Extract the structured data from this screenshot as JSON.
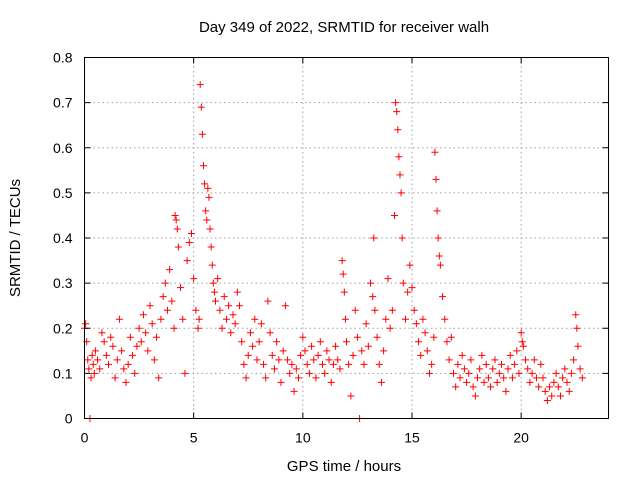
{
  "chart_data": {
    "type": "scatter",
    "title": "Day 349 of 2022, SRMTID for receiver walh",
    "xlabel": "GPS time / hours",
    "ylabel": "SRMTID / TECUs",
    "xlim": [
      0,
      24
    ],
    "ylim": [
      0,
      0.8
    ],
    "xticks": [
      0,
      5,
      10,
      15,
      20
    ],
    "xtick_labels": [
      "0",
      "5",
      "10",
      "15",
      "20"
    ],
    "yticks": [
      0,
      0.1,
      0.2,
      0.3,
      0.4,
      0.5,
      0.6,
      0.7,
      0.8
    ],
    "ytick_labels": [
      "0",
      "0.1",
      "0.2",
      "0.3",
      "0.4",
      "0.5",
      "0.6",
      "0.7",
      "0.8"
    ],
    "grid": true,
    "marker": "plus",
    "marker_color": "#ff0000",
    "series": [
      {
        "name": "SRMTID",
        "points": [
          [
            0.0,
            0.2
          ],
          [
            0.05,
            0.21
          ],
          [
            0.1,
            0.17
          ],
          [
            0.15,
            0.13
          ],
          [
            0.2,
            0.11
          ],
          [
            0.25,
            0.0
          ],
          [
            0.3,
            0.09
          ],
          [
            0.35,
            0.14
          ],
          [
            0.4,
            0.12
          ],
          [
            0.45,
            0.1
          ],
          [
            0.5,
            0.15
          ],
          [
            0.6,
            0.13
          ],
          [
            0.7,
            0.11
          ],
          [
            0.8,
            0.19
          ],
          [
            0.9,
            0.17
          ],
          [
            1.0,
            0.14
          ],
          [
            1.1,
            0.12
          ],
          [
            1.2,
            0.18
          ],
          [
            1.3,
            0.16
          ],
          [
            1.4,
            0.09
          ],
          [
            1.5,
            0.13
          ],
          [
            1.6,
            0.22
          ],
          [
            1.7,
            0.15
          ],
          [
            1.8,
            0.11
          ],
          [
            1.9,
            0.08
          ],
          [
            2.0,
            0.12
          ],
          [
            2.1,
            0.18
          ],
          [
            2.2,
            0.14
          ],
          [
            2.3,
            0.1
          ],
          [
            2.4,
            0.16
          ],
          [
            2.5,
            0.2
          ],
          [
            2.6,
            0.17
          ],
          [
            2.7,
            0.23
          ],
          [
            2.8,
            0.19
          ],
          [
            2.9,
            0.15
          ],
          [
            3.0,
            0.25
          ],
          [
            3.1,
            0.21
          ],
          [
            3.2,
            0.13
          ],
          [
            3.3,
            0.18
          ],
          [
            3.4,
            0.09
          ],
          [
            3.5,
            0.22
          ],
          [
            3.6,
            0.27
          ],
          [
            3.7,
            0.3
          ],
          [
            3.8,
            0.24
          ],
          [
            3.9,
            0.33
          ],
          [
            4.0,
            0.26
          ],
          [
            4.1,
            0.2
          ],
          [
            4.15,
            0.45
          ],
          [
            4.2,
            0.44
          ],
          [
            4.25,
            0.42
          ],
          [
            4.3,
            0.38
          ],
          [
            4.4,
            0.29
          ],
          [
            4.5,
            0.22
          ],
          [
            4.6,
            0.1
          ],
          [
            4.7,
            0.35
          ],
          [
            4.8,
            0.39
          ],
          [
            4.9,
            0.41
          ],
          [
            5.0,
            0.31
          ],
          [
            5.1,
            0.24
          ],
          [
            5.2,
            0.2
          ],
          [
            5.25,
            0.22
          ],
          [
            5.3,
            0.74
          ],
          [
            5.35,
            0.69
          ],
          [
            5.4,
            0.63
          ],
          [
            5.45,
            0.56
          ],
          [
            5.5,
            0.52
          ],
          [
            5.55,
            0.46
          ],
          [
            5.6,
            0.44
          ],
          [
            5.65,
            0.51
          ],
          [
            5.7,
            0.49
          ],
          [
            5.75,
            0.42
          ],
          [
            5.8,
            0.38
          ],
          [
            5.85,
            0.34
          ],
          [
            5.9,
            0.3
          ],
          [
            5.95,
            0.28
          ],
          [
            6.0,
            0.26
          ],
          [
            6.1,
            0.31
          ],
          [
            6.2,
            0.24
          ],
          [
            6.3,
            0.2
          ],
          [
            6.4,
            0.27
          ],
          [
            6.5,
            0.22
          ],
          [
            6.6,
            0.25
          ],
          [
            6.7,
            0.19
          ],
          [
            6.8,
            0.23
          ],
          [
            6.9,
            0.21
          ],
          [
            7.0,
            0.28
          ],
          [
            7.1,
            0.25
          ],
          [
            7.2,
            0.17
          ],
          [
            7.3,
            0.12
          ],
          [
            7.4,
            0.09
          ],
          [
            7.5,
            0.14
          ],
          [
            7.6,
            0.19
          ],
          [
            7.7,
            0.16
          ],
          [
            7.8,
            0.22
          ],
          [
            7.9,
            0.13
          ],
          [
            8.0,
            0.17
          ],
          [
            8.1,
            0.21
          ],
          [
            8.2,
            0.12
          ],
          [
            8.3,
            0.09
          ],
          [
            8.4,
            0.26
          ],
          [
            8.5,
            0.19
          ],
          [
            8.6,
            0.14
          ],
          [
            8.7,
            0.11
          ],
          [
            8.8,
            0.17
          ],
          [
            8.9,
            0.13
          ],
          [
            9.0,
            0.08
          ],
          [
            9.1,
            0.15
          ],
          [
            9.2,
            0.25
          ],
          [
            9.3,
            0.13
          ],
          [
            9.4,
            0.1
          ],
          [
            9.5,
            0.12
          ],
          [
            9.6,
            0.06
          ],
          [
            9.7,
            0.11
          ],
          [
            9.8,
            0.09
          ],
          [
            9.9,
            0.14
          ],
          [
            10.0,
            0.18
          ],
          [
            10.1,
            0.15
          ],
          [
            10.2,
            0.12
          ],
          [
            10.3,
            0.1
          ],
          [
            10.4,
            0.16
          ],
          [
            10.5,
            0.13
          ],
          [
            10.6,
            0.09
          ],
          [
            10.7,
            0.14
          ],
          [
            10.8,
            0.17
          ],
          [
            10.9,
            0.12
          ],
          [
            11.0,
            0.1
          ],
          [
            11.1,
            0.15
          ],
          [
            11.2,
            0.13
          ],
          [
            11.3,
            0.08
          ],
          [
            11.4,
            0.12
          ],
          [
            11.5,
            0.16
          ],
          [
            11.6,
            0.13
          ],
          [
            11.7,
            0.11
          ],
          [
            11.8,
            0.35
          ],
          [
            11.85,
            0.32
          ],
          [
            11.9,
            0.28
          ],
          [
            11.95,
            0.22
          ],
          [
            12.0,
            0.17
          ],
          [
            12.1,
            0.12
          ],
          [
            12.2,
            0.05
          ],
          [
            12.3,
            0.14
          ],
          [
            12.4,
            0.24
          ],
          [
            12.5,
            0.18
          ],
          [
            12.6,
            0.0
          ],
          [
            12.7,
            0.15
          ],
          [
            12.8,
            0.12
          ],
          [
            12.9,
            0.21
          ],
          [
            13.0,
            0.16
          ],
          [
            13.1,
            0.3
          ],
          [
            13.2,
            0.27
          ],
          [
            13.25,
            0.4
          ],
          [
            13.3,
            0.24
          ],
          [
            13.4,
            0.18
          ],
          [
            13.5,
            0.12
          ],
          [
            13.6,
            0.08
          ],
          [
            13.7,
            0.15
          ],
          [
            13.8,
            0.22
          ],
          [
            13.9,
            0.31
          ],
          [
            14.0,
            0.2
          ],
          [
            14.1,
            0.24
          ],
          [
            14.2,
            0.45
          ],
          [
            14.25,
            0.7
          ],
          [
            14.3,
            0.68
          ],
          [
            14.35,
            0.64
          ],
          [
            14.4,
            0.58
          ],
          [
            14.45,
            0.54
          ],
          [
            14.5,
            0.5
          ],
          [
            14.55,
            0.4
          ],
          [
            14.6,
            0.3
          ],
          [
            14.7,
            0.22
          ],
          [
            14.8,
            0.28
          ],
          [
            14.9,
            0.34
          ],
          [
            15.0,
            0.29
          ],
          [
            15.1,
            0.24
          ],
          [
            15.2,
            0.21
          ],
          [
            15.3,
            0.17
          ],
          [
            15.4,
            0.14
          ],
          [
            15.5,
            0.22
          ],
          [
            15.6,
            0.19
          ],
          [
            15.7,
            0.15
          ],
          [
            15.8,
            0.1
          ],
          [
            15.9,
            0.12
          ],
          [
            16.0,
            0.18
          ],
          [
            16.05,
            0.59
          ],
          [
            16.1,
            0.53
          ],
          [
            16.15,
            0.46
          ],
          [
            16.2,
            0.4
          ],
          [
            16.25,
            0.36
          ],
          [
            16.3,
            0.34
          ],
          [
            16.4,
            0.27
          ],
          [
            16.5,
            0.22
          ],
          [
            16.6,
            0.17
          ],
          [
            16.7,
            0.13
          ],
          [
            16.8,
            0.18
          ],
          [
            16.9,
            0.1
          ],
          [
            17.0,
            0.07
          ],
          [
            17.1,
            0.12
          ],
          [
            17.2,
            0.09
          ],
          [
            17.3,
            0.14
          ],
          [
            17.4,
            0.11
          ],
          [
            17.5,
            0.08
          ],
          [
            17.6,
            0.1
          ],
          [
            17.7,
            0.13
          ],
          [
            17.8,
            0.07
          ],
          [
            17.9,
            0.05
          ],
          [
            18.0,
            0.09
          ],
          [
            18.1,
            0.11
          ],
          [
            18.2,
            0.14
          ],
          [
            18.3,
            0.08
          ],
          [
            18.4,
            0.12
          ],
          [
            18.5,
            0.09
          ],
          [
            18.6,
            0.07
          ],
          [
            18.7,
            0.11
          ],
          [
            18.8,
            0.13
          ],
          [
            18.9,
            0.08
          ],
          [
            19.0,
            0.1
          ],
          [
            19.1,
            0.12
          ],
          [
            19.2,
            0.09
          ],
          [
            19.3,
            0.06
          ],
          [
            19.4,
            0.11
          ],
          [
            19.5,
            0.14
          ],
          [
            19.6,
            0.09
          ],
          [
            19.7,
            0.12
          ],
          [
            19.8,
            0.15
          ],
          [
            19.9,
            0.1
          ],
          [
            20.0,
            0.19
          ],
          [
            20.05,
            0.17
          ],
          [
            20.1,
            0.16
          ],
          [
            20.2,
            0.13
          ],
          [
            20.3,
            0.11
          ],
          [
            20.4,
            0.08
          ],
          [
            20.5,
            0.1
          ],
          [
            20.6,
            0.13
          ],
          [
            20.7,
            0.09
          ],
          [
            20.8,
            0.07
          ],
          [
            20.9,
            0.12
          ],
          [
            21.0,
            0.09
          ],
          [
            21.1,
            0.06
          ],
          [
            21.2,
            0.04
          ],
          [
            21.3,
            0.07
          ],
          [
            21.4,
            0.05
          ],
          [
            21.5,
            0.08
          ],
          [
            21.6,
            0.1
          ],
          [
            21.7,
            0.07
          ],
          [
            21.8,
            0.05
          ],
          [
            21.9,
            0.09
          ],
          [
            22.0,
            0.11
          ],
          [
            22.1,
            0.08
          ],
          [
            22.2,
            0.06
          ],
          [
            22.3,
            0.1
          ],
          [
            22.4,
            0.13
          ],
          [
            22.5,
            0.23
          ],
          [
            22.55,
            0.2
          ],
          [
            22.6,
            0.16
          ],
          [
            22.7,
            0.11
          ],
          [
            22.8,
            0.09
          ]
        ]
      }
    ]
  }
}
